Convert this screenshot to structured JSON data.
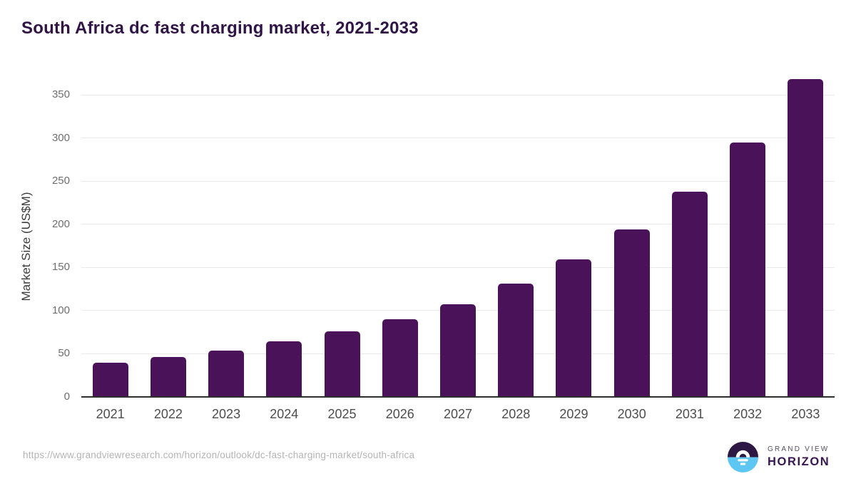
{
  "page": {
    "title": "South Africa dc fast charging market, 2021-2033"
  },
  "footer": {
    "source_url": "https://www.grandviewresearch.com/horizon/outlook/dc-fast-charging-market/south-africa",
    "logo": {
      "line1": "GRAND VIEW",
      "line2": "HORIZON"
    }
  },
  "colors": {
    "bar": "#4a1259",
    "title_text": "#2f1445",
    "gridline": "#e9e9e9",
    "axis_line": "#2e2e2e",
    "y_tick_text": "#6e6e6e",
    "x_tick_text": "#4d4d4d",
    "url_text": "#b4b4b4",
    "logo_dark_half": "#2d1844",
    "logo_blue_half": "#5ec6f2",
    "logo_horizon_text": "#3a1553",
    "logo_grandview_text": "#565060"
  },
  "chart_data": {
    "type": "bar",
    "title": "South Africa dc fast charging market, 2021-2033",
    "categories": [
      "2021",
      "2022",
      "2023",
      "2024",
      "2025",
      "2026",
      "2027",
      "2028",
      "2029",
      "2030",
      "2031",
      "2032",
      "2033"
    ],
    "values": [
      40,
      46,
      54,
      64,
      76,
      90,
      107,
      131,
      159,
      194,
      238,
      295,
      368
    ],
    "xlabel": "",
    "ylabel": "Market Size (US$M)",
    "ylim": [
      0,
      370
    ],
    "yticks": [
      0,
      50,
      100,
      150,
      200,
      250,
      300,
      350
    ],
    "grid": true,
    "legend": "none",
    "bar_color": "#4a1259"
  }
}
